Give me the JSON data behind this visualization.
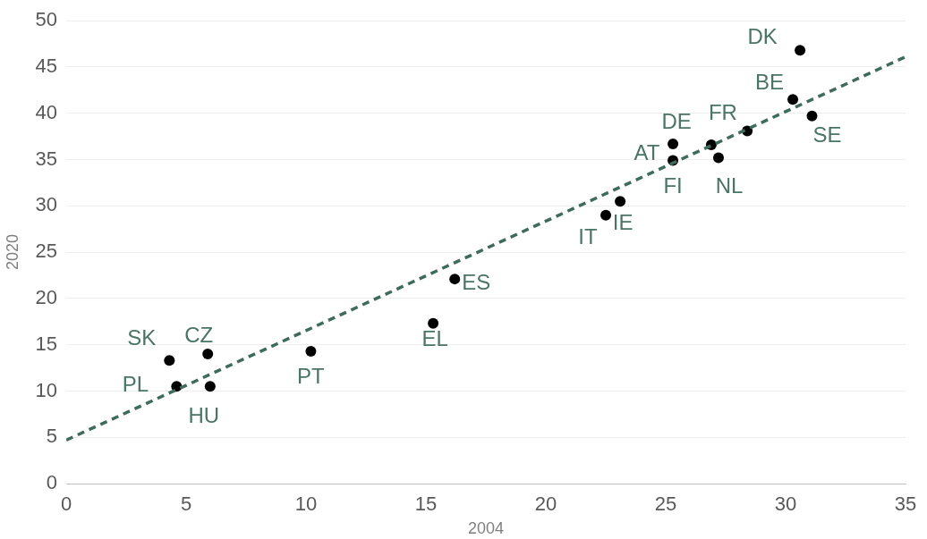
{
  "chart_data": {
    "type": "scatter",
    "xlabel": "2004",
    "ylabel": "2020",
    "xlim": [
      0,
      35
    ],
    "xticks": [
      0,
      5,
      10,
      15,
      20,
      25,
      30,
      35
    ],
    "ylim": [
      0,
      50
    ],
    "yticks": [
      0,
      5,
      10,
      15,
      20,
      25,
      30,
      35,
      40,
      45,
      50
    ],
    "grid": "y",
    "legend": false,
    "marker": "circle",
    "series": [
      {
        "color": "#000000",
        "x": [
          30.6,
          30.3,
          31.1,
          28.4,
          26.9,
          27.2,
          25.3,
          25.3,
          23.1,
          22.5,
          16.2,
          15.3,
          10.2,
          4.3,
          5.9,
          4.6,
          6.0
        ],
        "values": [
          46.8,
          41.5,
          39.7,
          38.1,
          36.6,
          35.2,
          36.7,
          34.9,
          30.5,
          29.0,
          22.1,
          17.3,
          14.3,
          13.3,
          14.0,
          10.5,
          10.5
        ]
      },
      {
        "type": "line",
        "color": "#3f6b5f",
        "line_style": "dashed",
        "marker": "none",
        "x": [
          0,
          35
        ],
        "values": [
          4.7,
          46.1
        ]
      }
    ],
    "annotations": [
      {
        "text": "DK",
        "x": 30.6,
        "y": 46.8
      },
      {
        "text": "BE",
        "x": 30.3,
        "y": 41.5
      },
      {
        "text": "SE",
        "x": 31.1,
        "y": 39.7
      },
      {
        "text": "FR",
        "x": 26.9,
        "y": 36.6
      },
      {
        "text": "NL",
        "x": 27.2,
        "y": 35.2
      },
      {
        "text": "DE",
        "x": 25.3,
        "y": 36.7
      },
      {
        "text": "AT",
        "x": 25.3,
        "y": 34.9
      },
      {
        "text": "FI",
        "x": 25.3,
        "y": 34.9
      },
      {
        "text": "IE",
        "x": 23.1,
        "y": 30.5
      },
      {
        "text": "IT",
        "x": 22.5,
        "y": 29.0
      },
      {
        "text": "ES",
        "x": 16.2,
        "y": 22.1
      },
      {
        "text": "EL",
        "x": 15.3,
        "y": 17.3
      },
      {
        "text": "PT",
        "x": 10.2,
        "y": 14.3
      },
      {
        "text": "SK",
        "x": 4.3,
        "y": 13.3
      },
      {
        "text": "CZ",
        "x": 5.9,
        "y": 14.0
      },
      {
        "text": "PL",
        "x": 4.6,
        "y": 10.5
      },
      {
        "text": "HU",
        "x": 6.0,
        "y": 10.5
      }
    ]
  }
}
